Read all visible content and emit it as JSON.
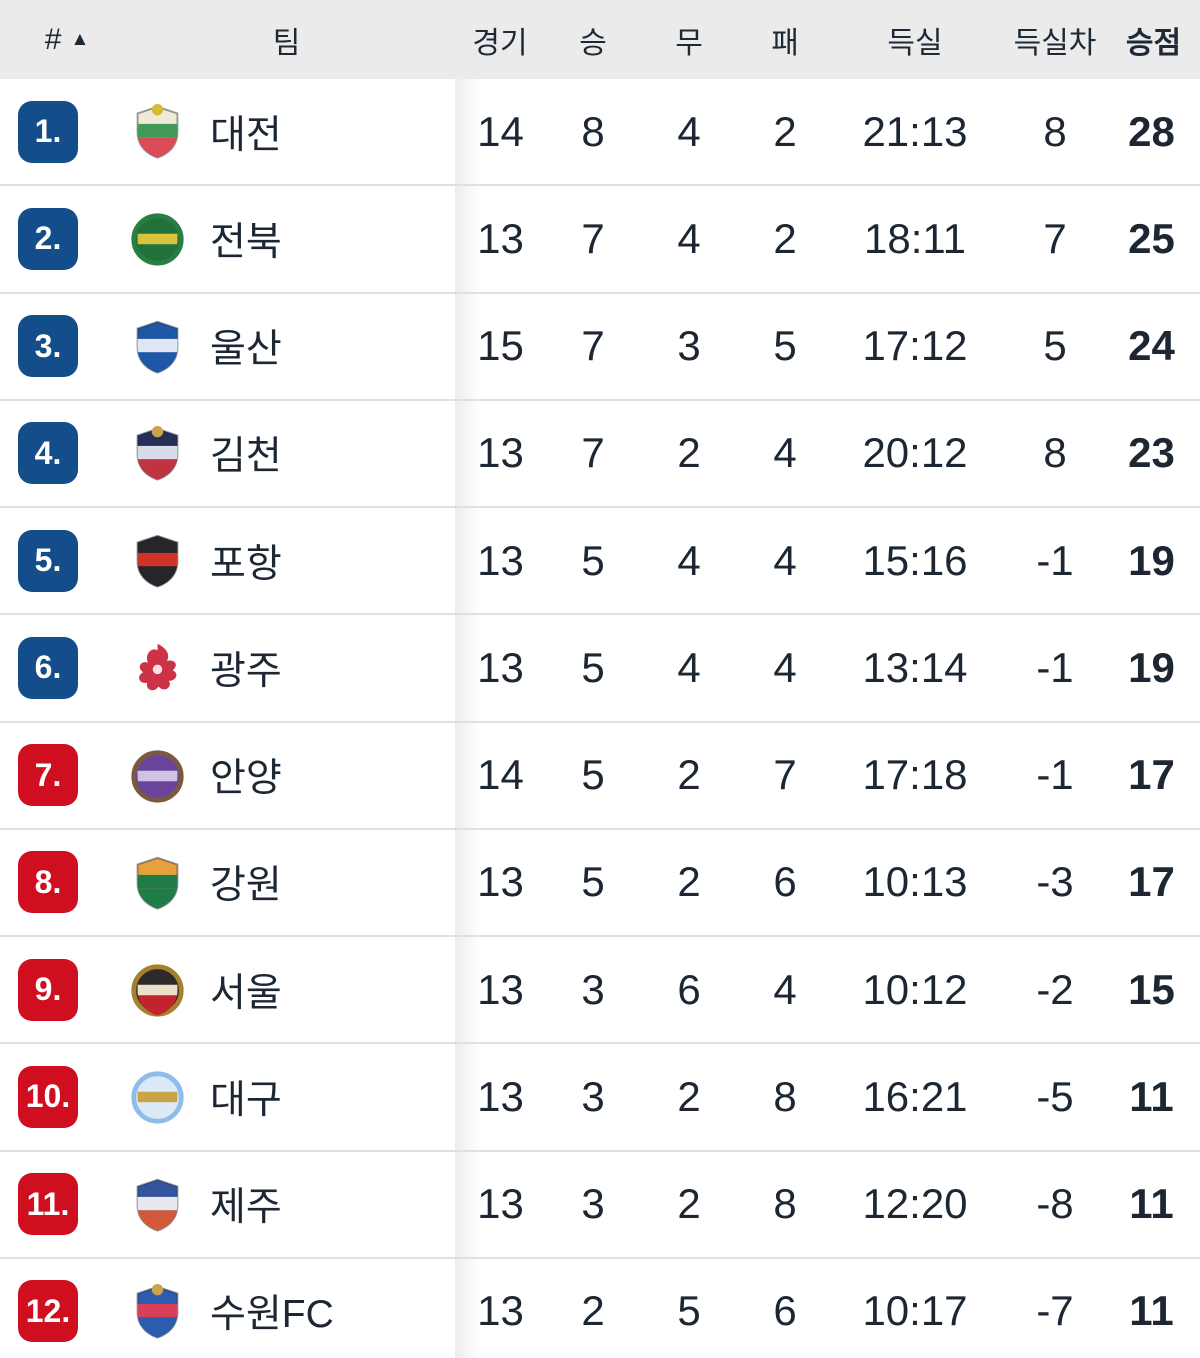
{
  "header": {
    "rank": "#",
    "sort_icon": "▲",
    "team": "팀",
    "games": "경기",
    "wins": "승",
    "draws": "무",
    "losses": "패",
    "goals": "득실",
    "diff": "득실차",
    "points": "승점"
  },
  "colors": {
    "badge_blue": "#134d8a",
    "badge_red": "#cf0e1f",
    "header_bg": "#ebebeb",
    "text": "#1c2733",
    "row_separator": "#e0e0e0"
  },
  "rows": [
    {
      "rank": "1.",
      "zone": "blue",
      "team": "대전",
      "games": "14",
      "wins": "8",
      "draws": "4",
      "losses": "2",
      "goals": "21:13",
      "diff": "8",
      "points": "28",
      "logo": {
        "icon": "daejeon-crest-icon",
        "shape": "shield",
        "colors": [
          "#efe9d6",
          "#3f9b55",
          "#d84b57",
          "#d9b92f"
        ]
      }
    },
    {
      "rank": "2.",
      "zone": "blue",
      "team": "전북",
      "games": "13",
      "wins": "7",
      "draws": "4",
      "losses": "2",
      "goals": "18:11",
      "diff": "7",
      "points": "25",
      "logo": {
        "icon": "jeonbuk-crest-icon",
        "shape": "circle",
        "colors": [
          "#20713a",
          null,
          "#d9c33c",
          "#2a7d44"
        ]
      }
    },
    {
      "rank": "3.",
      "zone": "blue",
      "team": "울산",
      "games": "15",
      "wins": "7",
      "draws": "3",
      "losses": "5",
      "goals": "17:12",
      "diff": "5",
      "points": "24",
      "logo": {
        "icon": "ulsan-crest-icon",
        "shape": "shield",
        "colors": [
          "#1d57a5",
          "#dfe7f4",
          "#1d57a5",
          null
        ]
      }
    },
    {
      "rank": "4.",
      "zone": "blue",
      "team": "김천",
      "games": "13",
      "wins": "7",
      "draws": "2",
      "losses": "4",
      "goals": "20:12",
      "diff": "8",
      "points": "23",
      "logo": {
        "icon": "gimcheon-crest-icon",
        "shape": "shield",
        "colors": [
          "#232f56",
          "#d8dcea",
          "#bf3440",
          "#c9a44a"
        ]
      }
    },
    {
      "rank": "5.",
      "zone": "blue",
      "team": "포항",
      "games": "13",
      "wins": "5",
      "draws": "4",
      "losses": "4",
      "goals": "15:16",
      "diff": "-1",
      "points": "19",
      "logo": {
        "icon": "pohang-crest-icon",
        "shape": "shield",
        "colors": [
          "#26262a",
          "#d1332a",
          "#26262a",
          null
        ]
      }
    },
    {
      "rank": "6.",
      "zone": "blue",
      "team": "광주",
      "games": "13",
      "wins": "5",
      "draws": "4",
      "losses": "4",
      "goals": "13:14",
      "diff": "-1",
      "points": "19",
      "logo": {
        "icon": "gwangju-phoenix-icon",
        "shape": "bird",
        "colors": [
          "#cc3347"
        ]
      }
    },
    {
      "rank": "7.",
      "zone": "red",
      "team": "안양",
      "games": "14",
      "wins": "5",
      "draws": "2",
      "losses": "7",
      "goals": "17:18",
      "diff": "-1",
      "points": "17",
      "logo": {
        "icon": "anyang-crest-icon",
        "shape": "circle",
        "colors": [
          "#6a449a",
          null,
          "#cfc3e4",
          "#7a5a3e"
        ]
      }
    },
    {
      "rank": "8.",
      "zone": "red",
      "team": "강원",
      "games": "13",
      "wins": "5",
      "draws": "2",
      "losses": "6",
      "goals": "10:13",
      "diff": "-3",
      "points": "17",
      "logo": {
        "icon": "gangwon-crest-icon",
        "shape": "shield",
        "colors": [
          "#e5a23c",
          "#1f7c48",
          "#1f7c48",
          null
        ]
      }
    },
    {
      "rank": "9.",
      "zone": "red",
      "team": "서울",
      "games": "13",
      "wins": "3",
      "draws": "6",
      "losses": "4",
      "goals": "10:12",
      "diff": "-2",
      "points": "15",
      "logo": {
        "icon": "seoul-crest-icon",
        "shape": "circle",
        "colors": [
          "#2b2b2b",
          "#c2242e",
          "#ecdfca",
          "#a5802f"
        ]
      }
    },
    {
      "rank": "10.",
      "zone": "red",
      "team": "대구",
      "games": "13",
      "wins": "3",
      "draws": "2",
      "losses": "8",
      "goals": "16:21",
      "diff": "-5",
      "points": "11",
      "logo": {
        "icon": "daegu-crest-icon",
        "shape": "circle",
        "colors": [
          "#dce9f7",
          null,
          "#c9a44a",
          "#8fbce8"
        ]
      }
    },
    {
      "rank": "11.",
      "zone": "red",
      "team": "제주",
      "games": "13",
      "wins": "3",
      "draws": "2",
      "losses": "8",
      "goals": "12:20",
      "diff": "-8",
      "points": "11",
      "logo": {
        "icon": "jeju-crest-icon",
        "shape": "shield",
        "colors": [
          "#35549e",
          "#e8e8f0",
          "#d2593a",
          null
        ]
      }
    },
    {
      "rank": "12.",
      "zone": "red",
      "team": "수원FC",
      "games": "13",
      "wins": "2",
      "draws": "5",
      "losses": "6",
      "goals": "10:17",
      "diff": "-7",
      "points": "11",
      "logo": {
        "icon": "suwonfc-crest-icon",
        "shape": "shield",
        "colors": [
          "#2b5cae",
          "#d8405a",
          "#2b5cae",
          "#c9a44a"
        ]
      }
    }
  ]
}
